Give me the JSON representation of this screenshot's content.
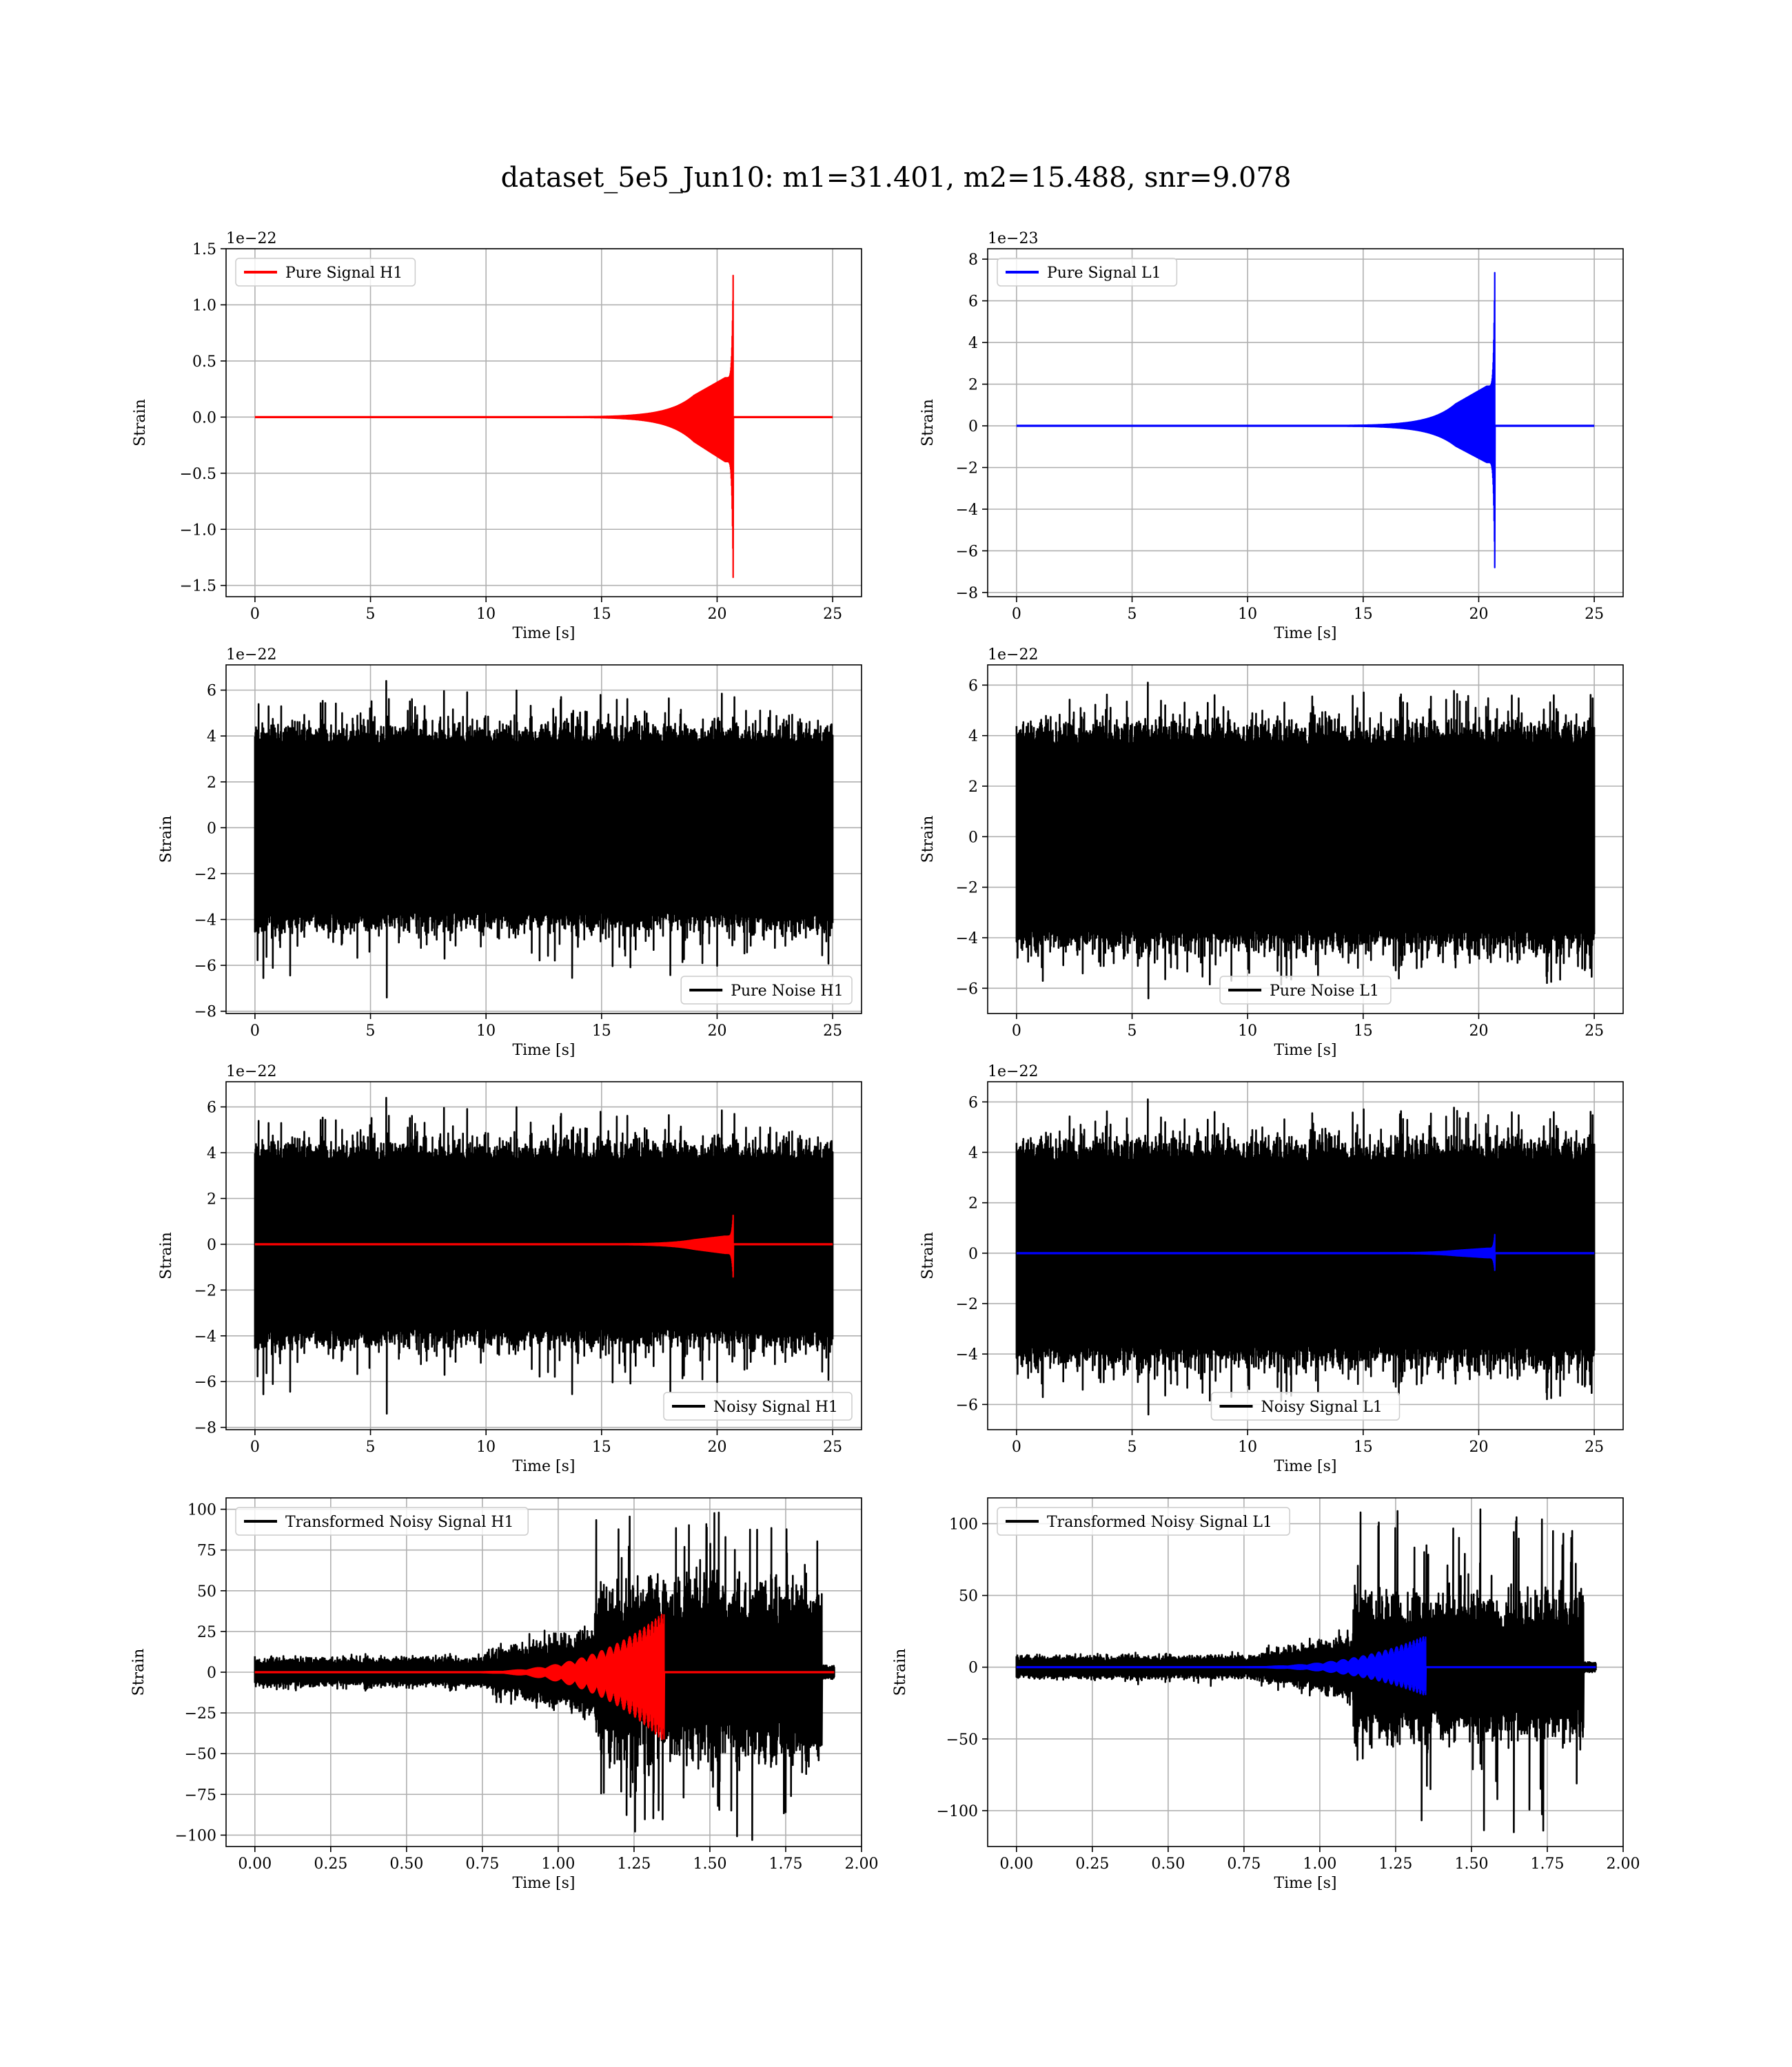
{
  "figure": {
    "title": "dataset_5e5_Jun10: m1=31.401, m2=15.488, snr=9.078",
    "colors": {
      "red": "#ff0000",
      "blue": "#0000ff",
      "black": "#000000"
    }
  },
  "chart_data": [
    {
      "id": "pure_signal_h1",
      "type": "line",
      "xlabel": "Time [s]",
      "ylabel": "Strain",
      "offset": "1e−22",
      "xlim": [
        -1.25,
        26.25
      ],
      "ylim": [
        -1.6,
        1.5
      ],
      "xticks": [
        0,
        5,
        10,
        15,
        20,
        25
      ],
      "xticklabels": [
        "0",
        "5",
        "10",
        "15",
        "20",
        "25"
      ],
      "yticks": [
        -1.5,
        -1.0,
        -0.5,
        0.0,
        0.5,
        1.0,
        1.5
      ],
      "yticklabels": [
        "−1.5",
        "−1.0",
        "−0.5",
        "0.0",
        "0.5",
        "1.0",
        "1.5"
      ],
      "legend_loc": "upper-left",
      "series": [
        {
          "name": "Pure Signal H1",
          "color": "#ff0000",
          "kind": "chirp",
          "x_start": 0,
          "x_end": 25,
          "t_merge": 20.7,
          "peak_pos": 1.37,
          "peak_neg": -1.55,
          "plateau": 0.35,
          "seed": 11
        }
      ]
    },
    {
      "id": "pure_signal_l1",
      "type": "line",
      "xlabel": "Time [s]",
      "ylabel": "Strain",
      "offset": "1e−23",
      "xlim": [
        -1.25,
        26.25
      ],
      "ylim": [
        -8.2,
        8.5
      ],
      "xticks": [
        0,
        5,
        10,
        15,
        20,
        25
      ],
      "xticklabels": [
        "0",
        "5",
        "10",
        "15",
        "20",
        "25"
      ],
      "yticks": [
        -8,
        -6,
        -4,
        -2,
        0,
        2,
        4,
        6,
        8
      ],
      "yticklabels": [
        "−8",
        "−6",
        "−4",
        "−2",
        "0",
        "2",
        "4",
        "6",
        "8"
      ],
      "legend_loc": "upper-left",
      "series": [
        {
          "name": "Pure Signal L1",
          "color": "#0000ff",
          "kind": "chirp",
          "x_start": 0,
          "x_end": 25,
          "t_merge": 20.7,
          "peak_pos": 8.0,
          "peak_neg": -7.4,
          "plateau": 1.9,
          "seed": 13
        }
      ]
    },
    {
      "id": "pure_noise_h1",
      "type": "line",
      "xlabel": "Time [s]",
      "ylabel": "Strain",
      "offset": "1e−22",
      "xlim": [
        -1.25,
        26.25
      ],
      "ylim": [
        -8.1,
        7.1
      ],
      "xticks": [
        0,
        5,
        10,
        15,
        20,
        25
      ],
      "xticklabels": [
        "0",
        "5",
        "10",
        "15",
        "20",
        "25"
      ],
      "yticks": [
        -8,
        -6,
        -4,
        -2,
        0,
        2,
        4,
        6
      ],
      "yticklabels": [
        "−8",
        "−6",
        "−4",
        "−2",
        "0",
        "2",
        "4",
        "6"
      ],
      "legend_loc": "lower-right",
      "series": [
        {
          "name": "Pure Noise H1",
          "color": "#000000",
          "kind": "noise",
          "x_start": 0,
          "x_end": 25,
          "amp_pos": 4.6,
          "amp_neg": -4.6,
          "spike_pos": 6.4,
          "spike_neg": -7.4,
          "seed": 21
        }
      ]
    },
    {
      "id": "pure_noise_l1",
      "type": "line",
      "xlabel": "Time [s]",
      "ylabel": "Strain",
      "offset": "1e−22",
      "xlim": [
        -1.25,
        26.25
      ],
      "ylim": [
        -7.0,
        6.8
      ],
      "xticks": [
        0,
        5,
        10,
        15,
        20,
        25
      ],
      "xticklabels": [
        "0",
        "5",
        "10",
        "15",
        "20",
        "25"
      ],
      "yticks": [
        -6,
        -4,
        -2,
        0,
        2,
        4,
        6
      ],
      "yticklabels": [
        "−6",
        "−4",
        "−2",
        "0",
        "2",
        "4",
        "6"
      ],
      "legend_loc": "lower-center",
      "series": [
        {
          "name": "Pure Noise L1",
          "color": "#000000",
          "kind": "noise",
          "x_start": 0,
          "x_end": 25,
          "amp_pos": 4.6,
          "amp_neg": -4.6,
          "spike_pos": 6.1,
          "spike_neg": -6.4,
          "seed": 31
        }
      ]
    },
    {
      "id": "noisy_signal_h1",
      "type": "line",
      "xlabel": "Time [s]",
      "ylabel": "Strain",
      "offset": "1e−22",
      "xlim": [
        -1.25,
        26.25
      ],
      "ylim": [
        -8.1,
        7.1
      ],
      "xticks": [
        0,
        5,
        10,
        15,
        20,
        25
      ],
      "xticklabels": [
        "0",
        "5",
        "10",
        "15",
        "20",
        "25"
      ],
      "yticks": [
        -8,
        -6,
        -4,
        -2,
        0,
        2,
        4,
        6
      ],
      "yticklabels": [
        "−8",
        "−6",
        "−4",
        "−2",
        "0",
        "2",
        "4",
        "6"
      ],
      "legend_loc": "lower-right",
      "series": [
        {
          "name": "Noisy Signal H1",
          "color": "#000000",
          "kind": "noise",
          "x_start": 0,
          "x_end": 25,
          "amp_pos": 4.6,
          "amp_neg": -4.6,
          "spike_pos": 6.4,
          "spike_neg": -7.4,
          "seed": 21
        },
        {
          "name": "",
          "color": "#ff0000",
          "kind": "chirp",
          "x_start": 0,
          "x_end": 25,
          "t_merge": 20.7,
          "peak_pos": 1.37,
          "peak_neg": -1.55,
          "plateau": 0.35,
          "seed": 11
        }
      ]
    },
    {
      "id": "noisy_signal_l1",
      "type": "line",
      "xlabel": "Time [s]",
      "ylabel": "Strain",
      "offset": "1e−22",
      "xlim": [
        -1.25,
        26.25
      ],
      "ylim": [
        -7.0,
        6.8
      ],
      "xticks": [
        0,
        5,
        10,
        15,
        20,
        25
      ],
      "xticklabels": [
        "0",
        "5",
        "10",
        "15",
        "20",
        "25"
      ],
      "yticks": [
        -6,
        -4,
        -2,
        0,
        2,
        4,
        6
      ],
      "yticklabels": [
        "−6",
        "−4",
        "−2",
        "0",
        "2",
        "4",
        "6"
      ],
      "legend_loc": "lower-center",
      "series": [
        {
          "name": "Noisy Signal L1",
          "color": "#000000",
          "kind": "noise",
          "x_start": 0,
          "x_end": 25,
          "amp_pos": 4.6,
          "amp_neg": -4.6,
          "spike_pos": 6.1,
          "spike_neg": -6.4,
          "seed": 31
        },
        {
          "name": "",
          "color": "#0000ff",
          "kind": "chirp",
          "x_start": 0,
          "x_end": 25,
          "t_merge": 20.7,
          "peak_pos": 0.8,
          "peak_neg": -0.74,
          "plateau": 0.19,
          "seed": 13
        }
      ]
    },
    {
      "id": "transformed_h1",
      "type": "line",
      "xlabel": "Time [s]",
      "ylabel": "Strain",
      "offset": "",
      "xlim": [
        -0.095,
        2.0
      ],
      "ylim": [
        -107,
        107
      ],
      "xticks": [
        0,
        0.25,
        0.5,
        0.75,
        1.0,
        1.25,
        1.5,
        1.75,
        2.0
      ],
      "xticklabels": [
        "0.00",
        "0.25",
        "0.50",
        "0.75",
        "1.00",
        "1.25",
        "1.50",
        "1.75",
        "2.00"
      ],
      "yticks": [
        -100,
        -75,
        -50,
        -25,
        0,
        25,
        50,
        75,
        100
      ],
      "yticklabels": [
        "−100",
        "−75",
        "−50",
        "−25",
        "0",
        "25",
        "50",
        "75",
        "100"
      ],
      "legend_loc": "upper-left",
      "series": [
        {
          "name": "Transformed Noisy Signal H1",
          "color": "#000000",
          "kind": "tnoise",
          "x_start": 0,
          "x_end": 1.91,
          "t_cut": 1.87,
          "base": 7,
          "rise_start": 0.75,
          "rise_end": 1.1,
          "mid": 22,
          "high": 65,
          "t_high": 1.12,
          "peak_pos": 98,
          "peak_neg": -103,
          "seed": 41
        },
        {
          "name": "",
          "color": "#ff0000",
          "kind": "tchirp",
          "x_start": 0,
          "x_end": 1.91,
          "t_merge": 1.35,
          "peak_pos": 37,
          "peak_neg": -43,
          "seed": 43
        }
      ]
    },
    {
      "id": "transformed_l1",
      "type": "line",
      "xlabel": "Time [s]",
      "ylabel": "Strain",
      "offset": "",
      "xlim": [
        -0.095,
        2.0
      ],
      "ylim": [
        -125,
        118
      ],
      "xticks": [
        0,
        0.25,
        0.5,
        0.75,
        1.0,
        1.25,
        1.5,
        1.75,
        2.0
      ],
      "xticklabels": [
        "0.00",
        "0.25",
        "0.50",
        "0.75",
        "1.00",
        "1.25",
        "1.50",
        "1.75",
        "2.00"
      ],
      "yticks": [
        -100,
        -50,
        0,
        50,
        100
      ],
      "yticklabels": [
        "−100",
        "−50",
        "0",
        "50",
        "100"
      ],
      "legend_loc": "upper-left",
      "series": [
        {
          "name": "Transformed Noisy Signal L1",
          "color": "#000000",
          "kind": "tnoise",
          "x_start": 0,
          "x_end": 1.91,
          "t_cut": 1.87,
          "base": 6,
          "rise_start": 0.8,
          "rise_end": 1.1,
          "mid": 18,
          "high": 60,
          "t_high": 1.11,
          "peak_pos": 110,
          "peak_neg": -115,
          "seed": 51
        },
        {
          "name": "",
          "color": "#0000ff",
          "kind": "tchirp",
          "x_start": 0,
          "x_end": 1.91,
          "t_merge": 1.35,
          "peak_pos": 22,
          "peak_neg": -20,
          "seed": 53
        }
      ]
    }
  ]
}
